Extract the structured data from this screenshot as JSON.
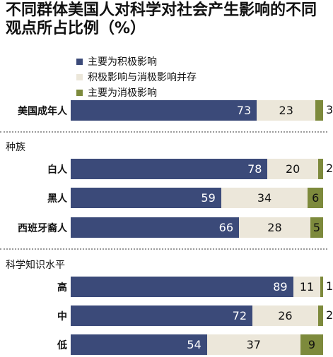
{
  "title": "不同群体美国人对科学对社会产生影响的不同观点所占比例（%）",
  "colors": {
    "positive": "#3b4a79",
    "neutral": "#ece7da",
    "negative": "#7d8a3c"
  },
  "chart_data": {
    "type": "bar",
    "orientation": "horizontal",
    "stacked": true,
    "title": "不同群体美国人对科学对社会产生影响的不同观点所占比例（%）",
    "legend": [
      "主要为积极影响",
      "积极影响与消极影响并存",
      "主要为消极影响"
    ],
    "xlim": [
      0,
      100
    ],
    "groups": [
      {
        "label": "",
        "rows": [
          {
            "label": "美国成年人",
            "values": [
              73,
              23,
              3
            ]
          }
        ]
      },
      {
        "label": "种族",
        "rows": [
          {
            "label": "白人",
            "values": [
              78,
              20,
              2
            ]
          },
          {
            "label": "黑人",
            "values": [
              59,
              34,
              6
            ]
          },
          {
            "label": "西班牙裔人",
            "values": [
              66,
              28,
              5
            ]
          }
        ]
      },
      {
        "label": "科学知识水平",
        "rows": [
          {
            "label": "高",
            "values": [
              89,
              11,
              1
            ]
          },
          {
            "label": "中",
            "values": [
              72,
              26,
              2
            ]
          },
          {
            "label": "低",
            "values": [
              54,
              37,
              9
            ]
          }
        ]
      }
    ]
  }
}
